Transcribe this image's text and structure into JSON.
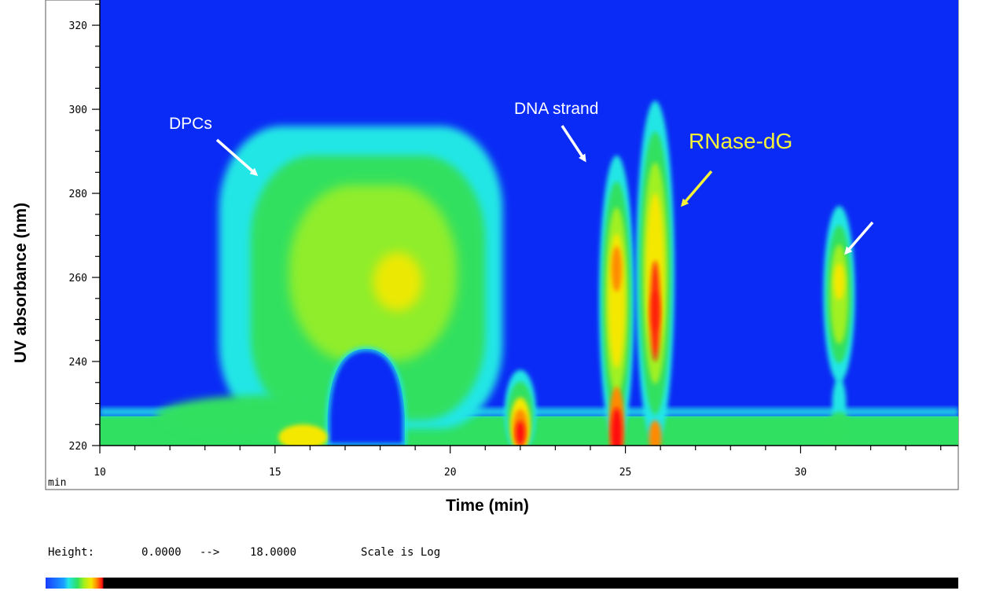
{
  "chart_data": {
    "type": "heatmap",
    "title": "",
    "xlabel": "Time (min)",
    "ylabel": "UV absorbance (nm)",
    "x_unit_label": "min",
    "xlim": [
      10,
      34.5
    ],
    "ylim": [
      220,
      326
    ],
    "xticks": [
      10,
      15,
      20,
      25,
      30
    ],
    "yticks": [
      220,
      240,
      260,
      280,
      300,
      320
    ],
    "background_color": "#0a2bf5",
    "features": [
      {
        "name": "DPCs",
        "time_range": [
          13.4,
          21.5
        ],
        "wavelength_range": [
          225,
          295
        ],
        "max_intensity_at": [
          18.6,
          259
        ],
        "level": "high"
      },
      {
        "name": "baseline",
        "time_range": [
          10,
          34.5
        ],
        "wavelength_range": [
          220,
          227
        ],
        "level": "low"
      },
      {
        "name": "peak-22",
        "time_center": 22.0,
        "wavelength_range": [
          220,
          240
        ],
        "max_intensity_at": [
          22.0,
          224
        ],
        "level": "max"
      },
      {
        "name": "DNA strand",
        "time_center": 24.75,
        "wavelength_range": [
          220,
          289
        ],
        "max_intensity_at": [
          24.75,
          224
        ],
        "level": "max"
      },
      {
        "name": "RNase-dG",
        "time_center": 25.85,
        "wavelength_range": [
          220,
          301
        ],
        "max_intensity_at": [
          25.85,
          252
        ],
        "level": "high"
      },
      {
        "name": "peak-31",
        "time_center": 31.1,
        "wavelength_range": [
          226,
          276
        ],
        "max_intensity_at": [
          31.1,
          259
        ],
        "level": "medium"
      }
    ],
    "annotations": [
      {
        "text": "DPCs",
        "color": "#ffffff"
      },
      {
        "text": "DNA strand",
        "color": "#ffffff"
      },
      {
        "text": "RNase-dG",
        "color": "#f5f23a"
      },
      {
        "text": "",
        "color": "#ffffff"
      }
    ],
    "colorscale": {
      "height_label": "Height:",
      "height_min": "0.0000",
      "arrow": "-->",
      "height_max": "18.0000",
      "scale_text": "Scale is Log",
      "colors": [
        "#1a3cff",
        "#1aa0ff",
        "#22e6e6",
        "#30e060",
        "#a0f020",
        "#f5e800",
        "#ff8a00",
        "#ff1010",
        "#000000"
      ]
    }
  }
}
